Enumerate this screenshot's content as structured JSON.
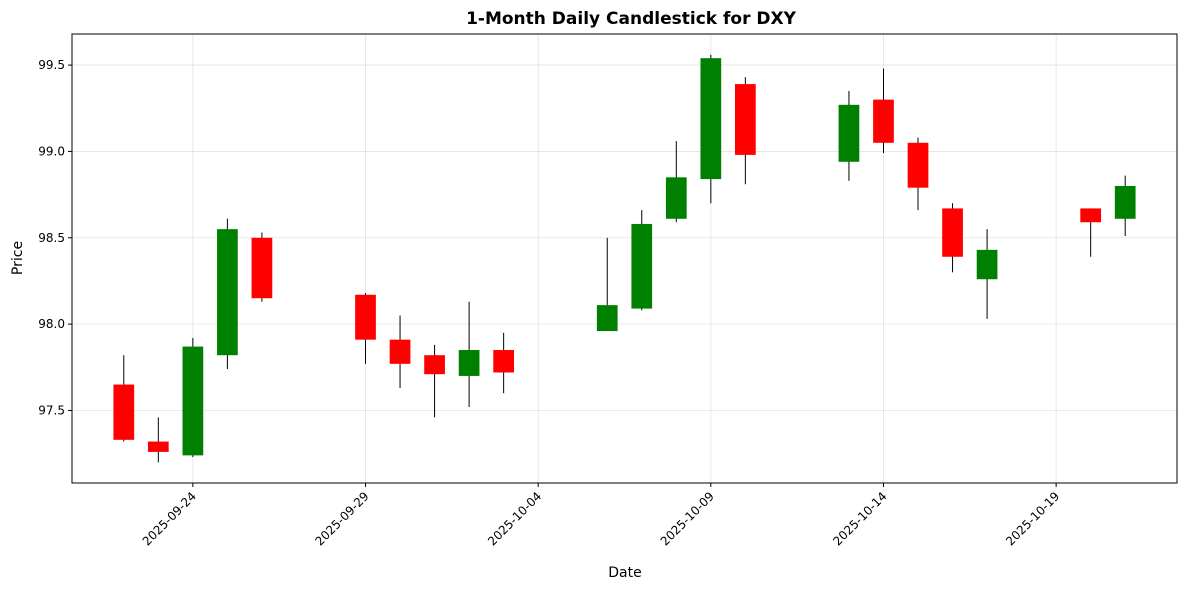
{
  "chart_data": {
    "type": "candlestick",
    "title": "1-Month Daily Candlestick for DXY",
    "xlabel": "Date",
    "ylabel": "Price",
    "xlim": [
      "2025-09-20T12:00",
      "2025-10-22T12:00"
    ],
    "ylim": [
      97.08,
      99.68
    ],
    "yticks": [
      97.5,
      98.0,
      98.5,
      99.0,
      99.5
    ],
    "ytick_labels": [
      "97.5",
      "98.0",
      "98.5",
      "99.0",
      "99.5"
    ],
    "xticks": [
      "2025-09-24",
      "2025-09-29",
      "2025-10-04",
      "2025-10-09",
      "2025-10-14",
      "2025-10-19"
    ],
    "grid": true,
    "up_color": "#008000",
    "down_color": "#ff0000",
    "candles": [
      {
        "date": "2025-09-22",
        "open": 97.65,
        "high": 97.82,
        "low": 97.32,
        "close": 97.33
      },
      {
        "date": "2025-09-23",
        "open": 97.32,
        "high": 97.46,
        "low": 97.2,
        "close": 97.26
      },
      {
        "date": "2025-09-24",
        "open": 97.24,
        "high": 97.92,
        "low": 97.23,
        "close": 97.87
      },
      {
        "date": "2025-09-25",
        "open": 97.82,
        "high": 98.61,
        "low": 97.74,
        "close": 98.55
      },
      {
        "date": "2025-09-26",
        "open": 98.5,
        "high": 98.53,
        "low": 98.13,
        "close": 98.15
      },
      {
        "date": "2025-09-29",
        "open": 98.17,
        "high": 98.18,
        "low": 97.77,
        "close": 97.91
      },
      {
        "date": "2025-09-30",
        "open": 97.91,
        "high": 98.05,
        "low": 97.63,
        "close": 97.77
      },
      {
        "date": "2025-10-01",
        "open": 97.82,
        "high": 97.88,
        "low": 97.46,
        "close": 97.71
      },
      {
        "date": "2025-10-02",
        "open": 97.7,
        "high": 98.13,
        "low": 97.52,
        "close": 97.85
      },
      {
        "date": "2025-10-03",
        "open": 97.85,
        "high": 97.95,
        "low": 97.6,
        "close": 97.72
      },
      {
        "date": "2025-10-06",
        "open": 97.96,
        "high": 98.5,
        "low": 97.96,
        "close": 98.11
      },
      {
        "date": "2025-10-07",
        "open": 98.09,
        "high": 98.66,
        "low": 98.08,
        "close": 98.58
      },
      {
        "date": "2025-10-08",
        "open": 98.61,
        "high": 99.06,
        "low": 98.59,
        "close": 98.85
      },
      {
        "date": "2025-10-09",
        "open": 98.84,
        "high": 99.56,
        "low": 98.7,
        "close": 99.54
      },
      {
        "date": "2025-10-10",
        "open": 99.39,
        "high": 99.43,
        "low": 98.81,
        "close": 98.98
      },
      {
        "date": "2025-10-13",
        "open": 98.94,
        "high": 99.35,
        "low": 98.83,
        "close": 99.27
      },
      {
        "date": "2025-10-14",
        "open": 99.3,
        "high": 99.48,
        "low": 98.99,
        "close": 99.05
      },
      {
        "date": "2025-10-15",
        "open": 99.05,
        "high": 99.08,
        "low": 98.66,
        "close": 98.79
      },
      {
        "date": "2025-10-16",
        "open": 98.67,
        "high": 98.7,
        "low": 98.3,
        "close": 98.39
      },
      {
        "date": "2025-10-17",
        "open": 98.26,
        "high": 98.55,
        "low": 98.03,
        "close": 98.43
      },
      {
        "date": "2025-10-20",
        "open": 98.67,
        "high": 98.67,
        "low": 98.39,
        "close": 98.59
      },
      {
        "date": "2025-10-21",
        "open": 98.61,
        "high": 98.86,
        "low": 98.51,
        "close": 98.8
      }
    ]
  }
}
